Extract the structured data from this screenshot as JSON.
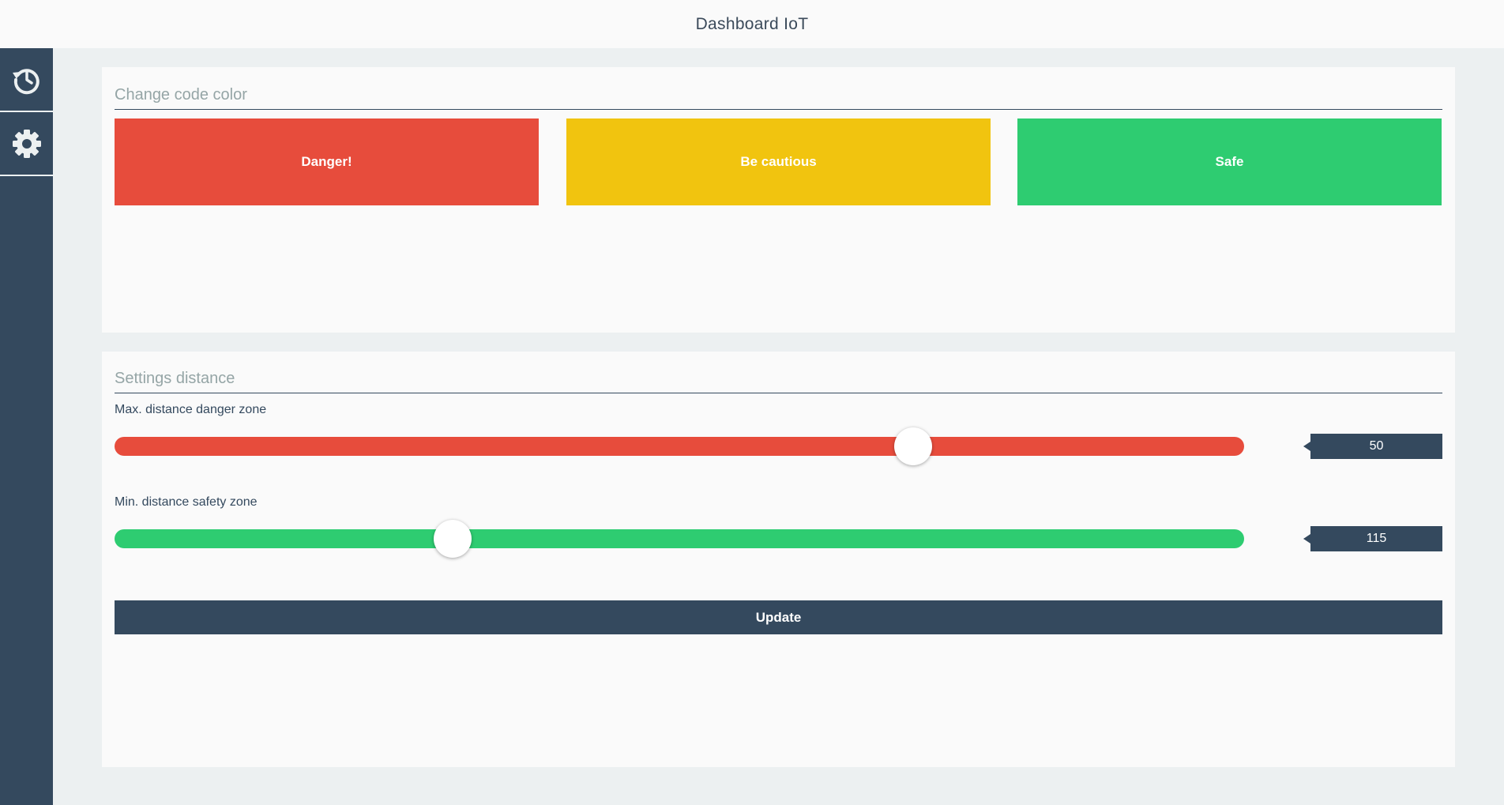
{
  "header": {
    "title": "Dashboard IoT"
  },
  "sidebar": {
    "items": [
      {
        "icon": "history-icon"
      },
      {
        "icon": "gear-icon"
      }
    ]
  },
  "code_color": {
    "title": "Change code color",
    "buttons": [
      {
        "label": "Danger!",
        "color": "#e74c3c"
      },
      {
        "label": "Be cautious",
        "color": "#f1c40f"
      },
      {
        "label": "Safe",
        "color": "#2ecc71"
      }
    ]
  },
  "settings": {
    "title": "Settings distance",
    "danger": {
      "label": "Max. distance danger zone",
      "value": "50",
      "fill_fraction": 0.707,
      "color": "#e74c3c"
    },
    "safety": {
      "label": "Min. distance safety zone",
      "value": "115",
      "fill_fraction": 0.299,
      "color": "#2ecc71"
    },
    "update_label": "Update"
  },
  "colors": {
    "accent": "#34495e",
    "background": "#ecf0f1",
    "panel": "#fafafa"
  }
}
